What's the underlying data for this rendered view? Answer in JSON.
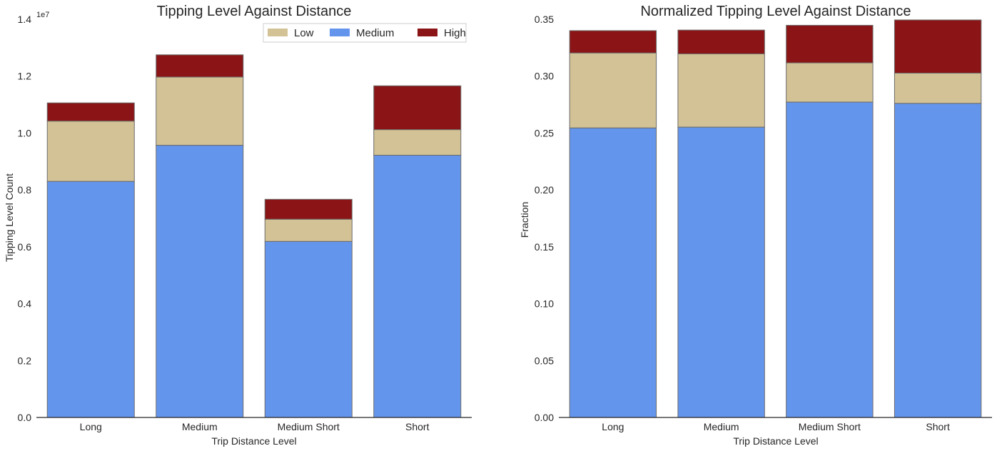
{
  "colors": {
    "Low": "#D2C295",
    "Medium": "#6495ED",
    "High": "#8B1516",
    "bar_edge": "#6b6b6b",
    "axis": "#262626"
  },
  "chart_data": [
    {
      "type": "bar",
      "stacked": true,
      "title": "Tipping Level Against Distance",
      "xlabel": "Trip Distance Level",
      "ylabel": "Tipping Level Count",
      "y_multiplier_label": "1e7",
      "categories": [
        "Long",
        "Medium",
        "Medium Short",
        "Short"
      ],
      "series": [
        {
          "name": "Medium",
          "values": [
            8300000,
            9570000,
            6190000,
            9220000
          ]
        },
        {
          "name": "Low",
          "values": [
            2120000,
            2400000,
            780000,
            900000
          ]
        },
        {
          "name": "High",
          "values": [
            640000,
            780000,
            700000,
            1540000
          ]
        }
      ],
      "ylim": [
        0,
        14000000
      ],
      "yticks": [
        "0.0",
        "0.2",
        "0.4",
        "0.6",
        "0.8",
        "1.0",
        "1.2",
        "1.4"
      ],
      "legend": {
        "position": "top-right",
        "entries": [
          "Low",
          "Medium",
          "High"
        ]
      }
    },
    {
      "type": "bar",
      "stacked": true,
      "title": "Normalized Tipping Level Against Distance",
      "xlabel": "Trip Distance Level",
      "ylabel": "Fraction",
      "categories": [
        "Long",
        "Medium",
        "Medium Short",
        "Short"
      ],
      "series": [
        {
          "name": "Medium",
          "values": [
            0.2545,
            0.2552,
            0.2772,
            0.2761
          ]
        },
        {
          "name": "Low",
          "values": [
            0.0659,
            0.0644,
            0.0345,
            0.0266
          ]
        },
        {
          "name": "High",
          "values": [
            0.0196,
            0.0209,
            0.033,
            0.0467
          ]
        }
      ],
      "ylim": [
        0,
        0.35
      ],
      "yticks": [
        "0.00",
        "0.05",
        "0.10",
        "0.15",
        "0.20",
        "0.25",
        "0.30",
        "0.35"
      ]
    }
  ]
}
